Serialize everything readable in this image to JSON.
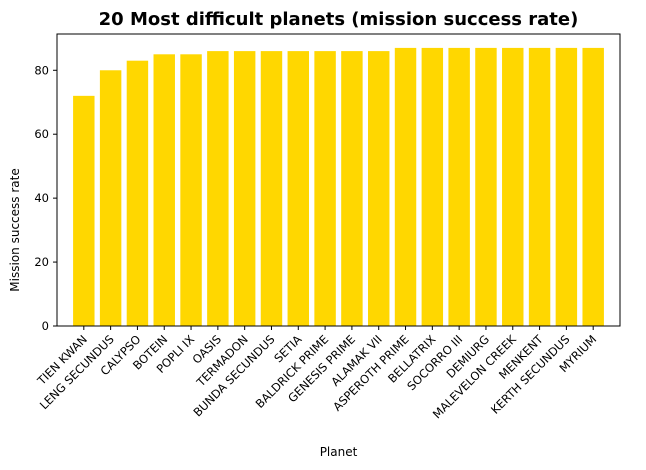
{
  "chart_data": {
    "type": "bar",
    "title": "20 Most difficult planets (mission success rate)",
    "xlabel": "Planet",
    "ylabel": "Mission success rate",
    "ylim": [
      0,
      91.35
    ],
    "yticks": [
      0,
      20,
      40,
      60,
      80
    ],
    "bar_color": "#FFD700",
    "grid": false,
    "categories": [
      "TIEN KWAN",
      "LENG SECUNDUS",
      "CALYPSO",
      "BOTEIN",
      "POPLI IX",
      "OASIS",
      "TERMADON",
      "BUNDA SECUNDUS",
      "SETIA",
      "BALDRICK PRIME",
      "GENESIS PRIME",
      "ALAMAK VII",
      "ASPEROTH PRIME",
      "BELLATRIX",
      "SOCORRO III",
      "DEMIURG",
      "MALEVELON CREEK",
      "MENKENT",
      "KERTH SECUNDUS",
      "MYRIUM"
    ],
    "values": [
      72,
      80,
      83,
      85,
      85,
      86,
      86,
      86,
      86,
      86,
      86,
      86,
      87,
      87,
      87,
      87,
      87,
      87,
      87,
      87
    ]
  }
}
